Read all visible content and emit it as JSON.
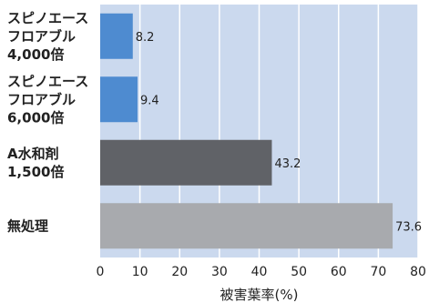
{
  "chart_data": {
    "type": "bar",
    "orientation": "horizontal",
    "categories": [
      [
        "スピノエース",
        "フロアブル",
        "4,000倍"
      ],
      [
        "スピノエース",
        "フロアブル",
        "6,000倍"
      ],
      [
        "A水和剤",
        "1,500倍"
      ],
      [
        "無処理"
      ]
    ],
    "values": [
      8.2,
      9.4,
      43.2,
      73.6
    ],
    "value_labels": [
      "8.2",
      "9.4",
      "43.2",
      "73.6"
    ],
    "bar_colors": [
      "#4e8bd0",
      "#4e8bd0",
      "#606267",
      "#a8aaae"
    ],
    "xlabel": "被害葉率(%)",
    "xlim": [
      0,
      80
    ],
    "xticks": [
      0,
      10,
      20,
      30,
      40,
      50,
      60,
      70,
      80
    ],
    "plot_background": "#cbd9ee",
    "grid": true,
    "grid_color": "#ffffff"
  }
}
